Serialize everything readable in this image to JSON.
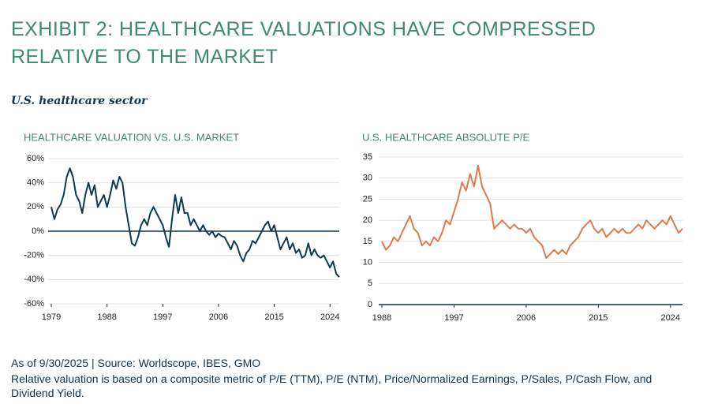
{
  "header": {
    "title": "EXHIBIT 2: HEALTHCARE VALUATIONS HAVE COMPRESSED RELATIVE TO THE MARKET",
    "subtitle": "U.S. healthcare sector"
  },
  "chart_data": [
    {
      "type": "line",
      "title": "HEALTHCARE VALUATION VS. U.S. MARKET",
      "color": "#0e3a4e",
      "x": [
        1979,
        1979.5,
        1980,
        1980.5,
        1981,
        1981.5,
        1982,
        1982.5,
        1983,
        1983.5,
        1984,
        1984.5,
        1985,
        1985.5,
        1986,
        1986.5,
        1987,
        1987.5,
        1988,
        1988.5,
        1989,
        1989.5,
        1990,
        1990.5,
        1991,
        1991.5,
        1992,
        1992.5,
        1993,
        1993.5,
        1994,
        1994.5,
        1995,
        1995.5,
        1996,
        1996.5,
        1997,
        1997.5,
        1998,
        1998.5,
        1999,
        1999.5,
        2000,
        2000.5,
        2001,
        2001.5,
        2002,
        2002.5,
        2003,
        2003.5,
        2004,
        2004.5,
        2005,
        2005.5,
        2006,
        2006.5,
        2007,
        2007.5,
        2008,
        2008.5,
        2009,
        2009.5,
        2010,
        2010.5,
        2011,
        2011.5,
        2012,
        2012.5,
        2013,
        2013.5,
        2014,
        2014.5,
        2015,
        2015.5,
        2016,
        2016.5,
        2017,
        2017.5,
        2018,
        2018.5,
        2019,
        2019.5,
        2020,
        2020.5,
        2021,
        2021.5,
        2022,
        2022.5,
        2023,
        2023.5,
        2024,
        2024.5,
        2025,
        2025.5
      ],
      "values": [
        20,
        10,
        18,
        22,
        30,
        45,
        52,
        45,
        30,
        25,
        15,
        30,
        40,
        30,
        38,
        20,
        25,
        30,
        20,
        30,
        42,
        35,
        45,
        40,
        20,
        5,
        -10,
        -12,
        -5,
        5,
        10,
        5,
        15,
        20,
        15,
        10,
        5,
        -5,
        -13,
        10,
        30,
        15,
        28,
        15,
        15,
        5,
        10,
        5,
        0,
        5,
        0,
        -3,
        0,
        -5,
        -2,
        -4,
        -5,
        -10,
        -15,
        -8,
        -12,
        -20,
        -25,
        -18,
        -15,
        -8,
        -10,
        -5,
        0,
        5,
        8,
        0,
        5,
        -5,
        -15,
        -10,
        -5,
        -15,
        -10,
        -18,
        -15,
        -22,
        -20,
        -10,
        -20,
        -15,
        -20,
        -22,
        -20,
        -25,
        -30,
        -25,
        -35,
        -38
      ],
      "xlim": [
        1979,
        2025.5
      ],
      "xticks": [
        1979,
        1988,
        1997,
        2006,
        2015,
        2024
      ],
      "ylim": [
        -60,
        60
      ],
      "yticks": [
        {
          "value": -60,
          "label": "-60%"
        },
        {
          "value": -40,
          "label": "-40%"
        },
        {
          "value": -20,
          "label": "-20%"
        },
        {
          "value": 0,
          "label": "0%"
        },
        {
          "value": 20,
          "label": "20%"
        },
        {
          "value": 40,
          "label": "40%"
        },
        {
          "value": 60,
          "label": "60%"
        }
      ],
      "grid": true
    },
    {
      "type": "line",
      "title": "U.S. HEALTHCARE ABSOLUTE P/E",
      "color": "#e07a4c",
      "x": [
        1988,
        1988.5,
        1989,
        1989.5,
        1990,
        1990.5,
        1991,
        1991.5,
        1992,
        1992.5,
        1993,
        1993.5,
        1994,
        1994.5,
        1995,
        1995.5,
        1996,
        1996.5,
        1997,
        1997.5,
        1998,
        1998.5,
        1999,
        1999.5,
        2000,
        2000.5,
        2001,
        2001.5,
        2002,
        2002.5,
        2003,
        2003.5,
        2004,
        2004.5,
        2005,
        2005.5,
        2006,
        2006.5,
        2007,
        2007.5,
        2008,
        2008.5,
        2009,
        2009.5,
        2010,
        2010.5,
        2011,
        2011.5,
        2012,
        2012.5,
        2013,
        2013.5,
        2014,
        2014.5,
        2015,
        2015.5,
        2016,
        2016.5,
        2017,
        2017.5,
        2018,
        2018.5,
        2019,
        2019.5,
        2020,
        2020.5,
        2021,
        2021.5,
        2022,
        2022.5,
        2023,
        2023.5,
        2024,
        2024.5,
        2025,
        2025.5
      ],
      "values": [
        15,
        13,
        14,
        16,
        15,
        17,
        19,
        21,
        18,
        17,
        14,
        15,
        14,
        16,
        15,
        17,
        20,
        19,
        22,
        25,
        29,
        27,
        31,
        28,
        33,
        28,
        26,
        24,
        18,
        19,
        20,
        19,
        18,
        19,
        18,
        18,
        17,
        18,
        16,
        15,
        14,
        11,
        12,
        13,
        12,
        13,
        12,
        14,
        15,
        16,
        18,
        19,
        20,
        18,
        17,
        18,
        16,
        17,
        18,
        17,
        18,
        17,
        17,
        18,
        19,
        18,
        20,
        19,
        18,
        19,
        20,
        19,
        21,
        19,
        17,
        18
      ],
      "xlim": [
        1988,
        2025.5
      ],
      "xticks": [
        1988,
        1997,
        2006,
        2015,
        2024
      ],
      "ylim": [
        0,
        35
      ],
      "yticks": [
        0,
        5,
        10,
        15,
        20,
        25,
        30,
        35
      ],
      "grid": true
    }
  ],
  "footer": {
    "source": "As of 9/30/2025 | Source: Worldscope, IBES, GMO",
    "note": "Relative valuation is based on a composite metric of P/E (TTM), P/E (NTM), Price/Normalized Earnings, P/Sales, P/Cash Flow, and Dividend Yield."
  }
}
